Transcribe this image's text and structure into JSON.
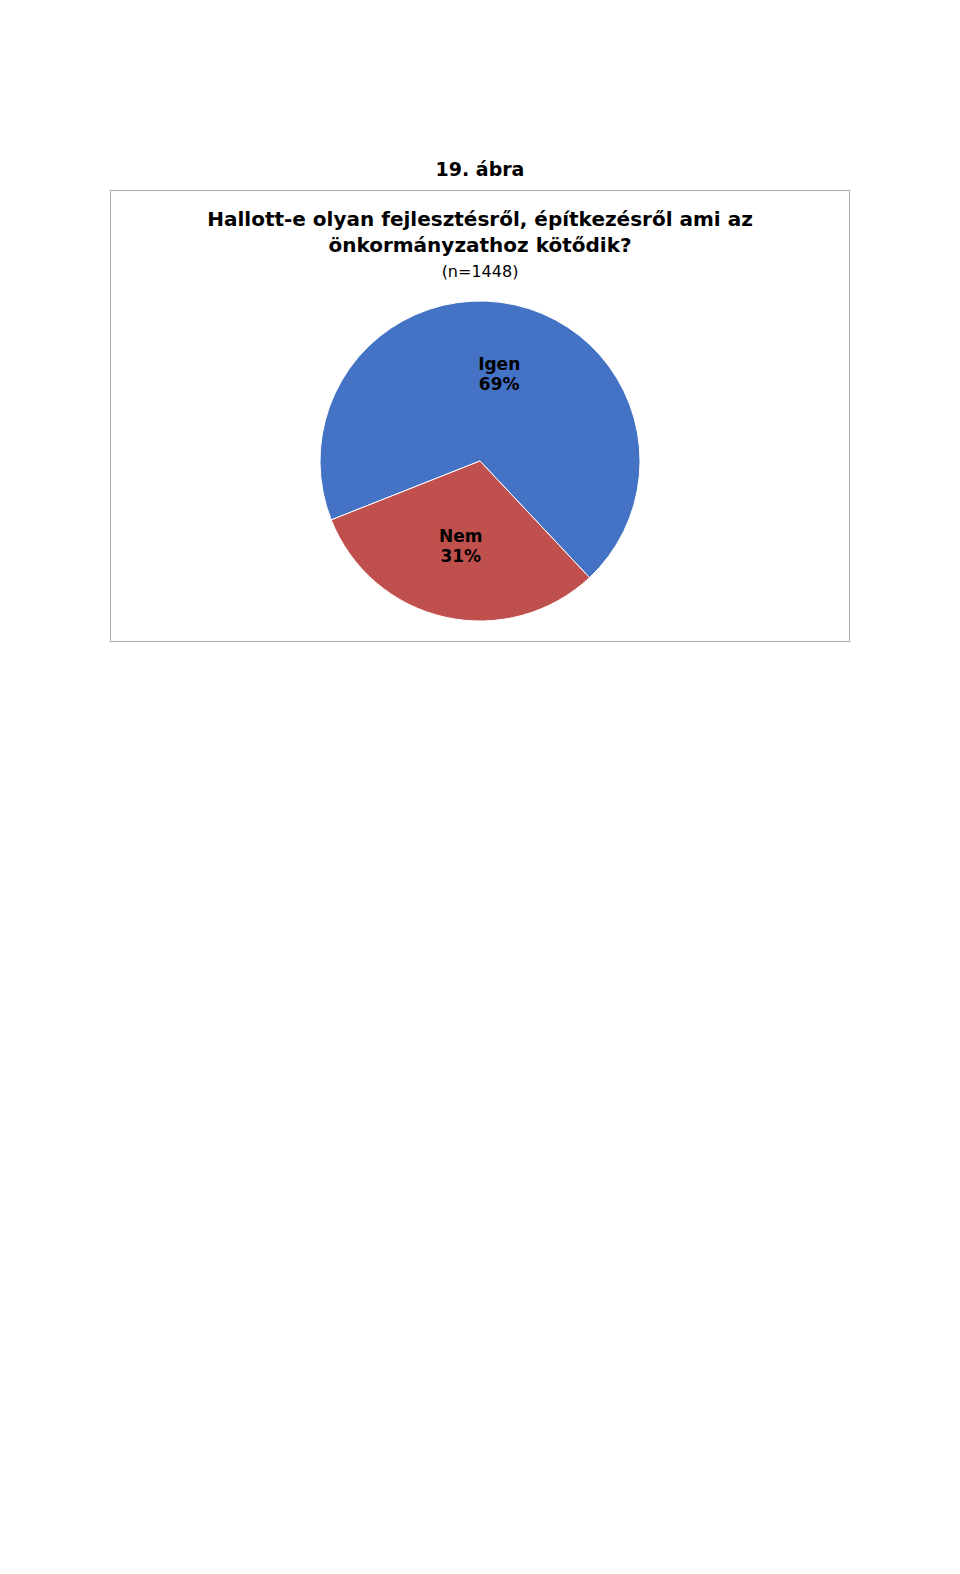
{
  "chart_data": {
    "type": "pie",
    "annotations": [
      "19. ábra"
    ],
    "title": "Hallott-e olyan fejlesztésről, építkezésről ami az\nönkormányzathoz kötődik?",
    "subtitle": "(n=1448)",
    "categories": [
      "Igen",
      "Nem"
    ],
    "values": [
      69,
      31
    ],
    "value_labels": [
      "69%",
      "31%"
    ],
    "colors": [
      "#4472C4",
      "#C0504D"
    ],
    "data_labels": true
  }
}
